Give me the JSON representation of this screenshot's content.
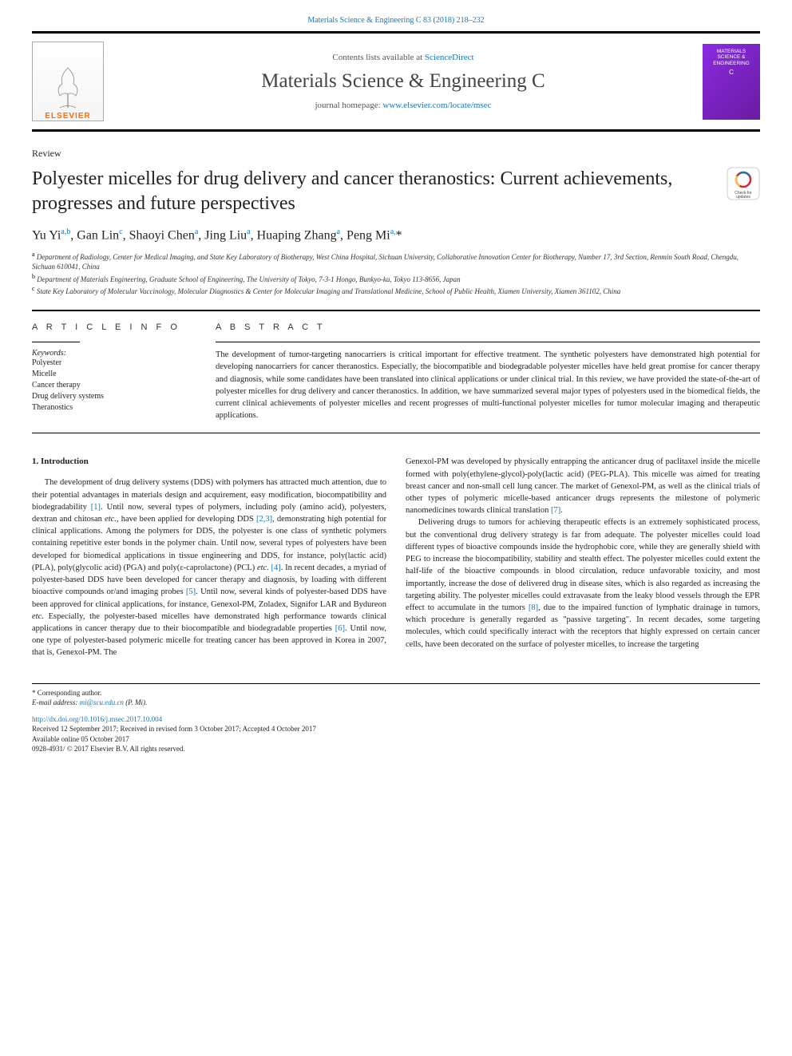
{
  "header": {
    "citation": "Materials Science & Engineering C 83 (2018) 218–232",
    "contents_prefix": "Contents lists available at ",
    "contents_link": "ScienceDirect",
    "journal_name": "Materials Science & Engineering C",
    "homepage_prefix": "journal homepage: ",
    "homepage_link": "www.elsevier.com/locate/msec",
    "publisher": "ELSEVIER",
    "cover_line1": "MATERIALS",
    "cover_line2": "SCIENCE &",
    "cover_line3": "ENGINEERING",
    "cover_sub": "C"
  },
  "article": {
    "type": "Review",
    "title": "Polyester micelles for drug delivery and cancer theranostics: Current achievements, progresses and future perspectives",
    "crossmark_label": "Check for updates",
    "authors_html": "Yu Yi<sup>a,b</sup>, Gan Lin<sup>c</sup>, Shaoyi Chen<sup>a</sup>, Jing Liu<sup>a</sup>, Huaping Zhang<sup>a</sup>, Peng Mi<sup>a,</sup>*",
    "affiliations": [
      {
        "sup": "a",
        "text": "Department of Radiology, Center for Medical Imaging, and State Key Laboratory of Biotherapy, West China Hospital, Sichuan University, Collaborative Innovation Center for Biotherapy, Number 17, 3rd Section, Renmin South Road, Chengdu, Sichuan 610041, China"
      },
      {
        "sup": "b",
        "text": "Department of Materials Engineering, Graduate School of Engineering, The University of Tokyo, 7-3-1 Hongo, Bunkyo-ku, Tokyo 113-8656, Japan"
      },
      {
        "sup": "c",
        "text": "State Key Laboratory of Molecular Vaccinology, Molecular Diagnostics & Center for Molecular Imaging and Translational Medicine, School of Public Health, Xiamen University, Xiamen 361102, China"
      }
    ]
  },
  "info": {
    "heading": "A R T I C L E  I N F O",
    "kw_label": "Keywords:",
    "keywords": [
      "Polyester",
      "Micelle",
      "Cancer therapy",
      "Drug delivery systems",
      "Theranostics"
    ]
  },
  "abstract": {
    "heading": "A B S T R A C T",
    "text": "The development of tumor-targeting nanocarriers is critical important for effective treatment. The synthetic polyesters have demonstrated high potential for developing nanocarriers for cancer theranostics. Especially, the biocompatible and biodegradable polyester micelles have held great promise for cancer therapy and diagnosis, while some candidates have been translated into clinical applications or under clinical trial. In this review, we have provided the state-of-the-art of polyester micelles for drug delivery and cancer theranostics. In addition, we have summarized several major types of polyesters used in the biomedical fields, the current clinical achievements of polyester micelles and recent progresses of multi-functional polyester micelles for tumor molecular imaging and therapeutic applications."
  },
  "body": {
    "section_num": "1.",
    "section_title": "Introduction",
    "col1": [
      "The development of drug delivery systems (DDS) with polymers has attracted much attention, due to their potential advantages in materials design and acquirement, easy modification, biocompatibility and biodegradability <span class=\"ref-link\">[1]</span>. Until now, several types of polymers, including poly (amino acid), polyesters, dextran and chitosan <i>etc.</i>, have been applied for developing DDS <span class=\"ref-link\">[2,3]</span>, demonstrating high potential for clinical applications. Among the polymers for DDS, the polyester is one class of synthetic polymers containing repetitive ester bonds in the polymer chain. Until now, several types of polyesters have been developed for biomedical applications in tissue engineering and DDS, for instance, poly(lactic acid) (PLA), poly(glycolic acid) (PGA) and poly(ε-caprolactone) (PCL) <i>etc.</i> <span class=\"ref-link\">[4]</span>. In recent decades, a myriad of polyester-based DDS have been developed for cancer therapy and diagnosis, by loading with different bioactive compounds or/and imaging probes <span class=\"ref-link\">[5]</span>. Until now, several kinds of polyester-based DDS have been approved for clinical applications, for instance, Genexol-PM, Zoladex, Signifor LAR and Bydureon <i>etc.</i> Especially, the polyester-based micelles have demonstrated high performance towards clinical applications in cancer therapy due to their biocompatible and biodegradable properties <span class=\"ref-link\">[6]</span>. Until now, one type of polyester-based polymeric micelle for treating cancer has been approved in Korea in 2007, that is, Genexol-PM. The"
    ],
    "col2": [
      "Genexol-PM was developed by physically entrapping the anticancer drug of paclitaxel inside the micelle formed with poly(ethylene-glycol)-poly(lactic acid) (PEG-PLA). This micelle was aimed for treating breast cancer and non-small cell lung cancer. The market of Genexol-PM, as well as the clinical trials of other types of polymeric micelle-based anticancer drugs represents the milestone of polymeric nanomedicines towards clinical translation <span class=\"ref-link\">[7]</span>.",
      "Delivering drugs to tumors for achieving therapeutic effects is an extremely sophisticated process, but the conventional drug delivery strategy is far from adequate. The polyester micelles could load different types of bioactive compounds inside the hydrophobic core, while they are generally shield with PEG to increase the biocompatibility, stability and stealth effect. The polyester micelles could extent the half-life of the bioactive compounds in blood circulation, reduce unfavorable toxicity, and most importantly, increase the dose of delivered drug in disease sites, which is also regarded as increasing the targeting ability. The polyester micelles could extravasate from the leaky blood vessels through the EPR effect to accumulate in the tumors <span class=\"ref-link\">[8]</span>, due to the impaired function of lymphatic drainage in tumors, which procedure is generally regarded as \"passive targeting\". In recent decades, some targeting molecules, which could specifically interact with the receptors that highly expressed on certain cancer cells, have been decorated on the surface of polyester micelles, to increase the targeting"
    ]
  },
  "footer": {
    "corr": "* Corresponding author.",
    "email_label": "E-mail address: ",
    "email": "mi@scu.edu.cn",
    "email_suffix": " (P. Mi).",
    "doi": "http://dx.doi.org/10.1016/j.msec.2017.10.004",
    "received": "Received 12 September 2017; Received in revised form 3 October 2017; Accepted 4 October 2017",
    "available": "Available online 05 October 2017",
    "copyright": "0928-4931/ © 2017 Elsevier B.V. All rights reserved."
  },
  "colors": {
    "link": "#1476b9",
    "elsevier_orange": "#ff6c00",
    "cover_purple1": "#8a2be2",
    "cover_purple2": "#6a1ba0"
  }
}
